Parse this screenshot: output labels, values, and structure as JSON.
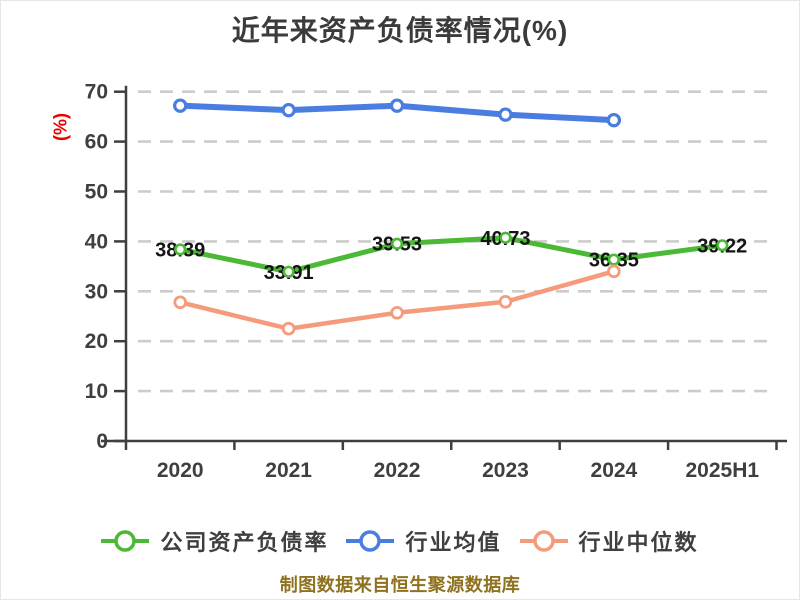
{
  "title": "近年来资产负债率情况(%)",
  "footer": "制图数据来自恒生聚源数据库",
  "colors": {
    "background": "#ffffff",
    "title_text": "#3b3b3b",
    "axis_text": "#3f3f3f",
    "axis_line": "#3f3f3f",
    "grid_line": "#cccccc",
    "data_label_text": "#141414",
    "ylabel_text": "#ee0000",
    "footer_text": "#8f7220",
    "legend_text": "#3f3f3f"
  },
  "chart_data": {
    "type": "line",
    "title": "近年来资产负债率情况(%)",
    "xlabel": "",
    "ylabel": "(%)",
    "categories": [
      "2020",
      "2021",
      "2022",
      "2023",
      "2024",
      "2025H1"
    ],
    "ylim": [
      0,
      70
    ],
    "yticks": [
      0,
      10,
      20,
      30,
      40,
      50,
      60,
      70
    ],
    "grid": "horizontal-dashed",
    "legend_position": "bottom",
    "series": [
      {
        "name": "公司资产负债率",
        "color": "#4bb836",
        "values": [
          38.39,
          33.91,
          39.53,
          40.73,
          36.35,
          39.22
        ],
        "data_labels": [
          "38.39",
          "33.91",
          "39.53",
          "40.73",
          "36.35",
          "39.22"
        ],
        "labels_shown": true
      },
      {
        "name": "行业均值",
        "color": "#4a7de0",
        "values": [
          67.2,
          66.3,
          67.2,
          65.4,
          64.3,
          null
        ],
        "labels_shown": false
      },
      {
        "name": "行业中位数",
        "color": "#f59b7c",
        "values": [
          27.8,
          22.5,
          25.7,
          27.9,
          34.0,
          null
        ],
        "labels_shown": false
      }
    ]
  }
}
